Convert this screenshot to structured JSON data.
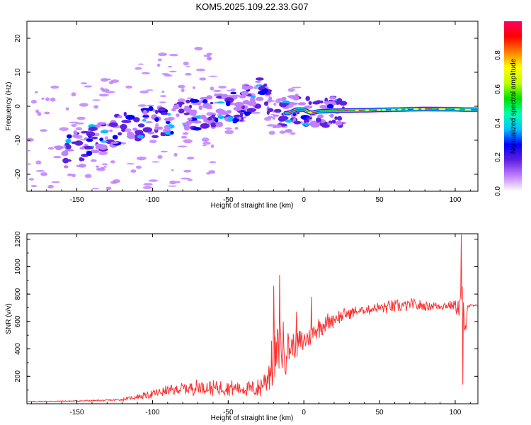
{
  "title": "KOM5.2025.109.22.33.G07",
  "chart_data": [
    {
      "type": "heatmap",
      "name": "spectrogram",
      "xlabel": "Height of straight line (km)",
      "ylabel": "Frequency (Hz)",
      "xlim": [
        -183,
        115
      ],
      "ylim": [
        -25,
        25
      ],
      "xticks": [
        -150,
        -100,
        -50,
        0,
        50,
        100
      ],
      "yticks": [
        -20,
        -10,
        0,
        10,
        20
      ],
      "ridge": {
        "x": [
          -183,
          -160,
          -140,
          -120,
          -100,
          -80,
          -65,
          -50,
          -40,
          -30,
          -25,
          -20,
          -15,
          -10,
          -5,
          0,
          5,
          10,
          20,
          40,
          60,
          80,
          100,
          108,
          115
        ],
        "freq": [
          -12,
          -14,
          -10,
          -6,
          -5,
          -3,
          -2,
          -1,
          1,
          4,
          2,
          -3,
          -2,
          -2,
          -1,
          -1,
          -2,
          -1.5,
          -1.3,
          -1.2,
          -1,
          -0.8,
          -0.9,
          -1,
          -1
        ]
      },
      "colorbar": {
        "label": "Normalized spectral amplitude",
        "range": [
          0,
          1
        ],
        "ticks": [
          "0.0",
          "0.2",
          "0.4",
          "0.6",
          "0.8"
        ],
        "colors": [
          "#ffffff",
          "#c080ff",
          "#6020e0",
          "#0000ff",
          "#00c0ff",
          "#00ffb0",
          "#00e000",
          "#c0ff00",
          "#ffff00",
          "#ff8000",
          "#ff0000",
          "#ff0060"
        ]
      }
    },
    {
      "type": "line",
      "name": "snr",
      "xlabel": "Height of straight line (km)",
      "ylabel": "SNR (v/v)",
      "xlim": [
        -183,
        115
      ],
      "ylim": [
        0,
        1240
      ],
      "xticks": [
        -150,
        -100,
        -50,
        0,
        50,
        100
      ],
      "yticks": [
        200,
        400,
        600,
        800,
        1000,
        1200
      ],
      "color": "#ff3030",
      "envelope": {
        "x": [
          -183,
          -150,
          -130,
          -120,
          -110,
          -100,
          -90,
          -80,
          -70,
          -60,
          -50,
          -40,
          -30,
          -25,
          -20,
          -17,
          -15,
          -13,
          -10,
          0,
          10,
          20,
          30,
          40,
          50,
          60,
          70,
          80,
          90,
          100,
          103,
          105,
          106,
          108,
          115
        ],
        "mean": [
          15,
          20,
          25,
          30,
          50,
          70,
          95,
          110,
          120,
          115,
          120,
          110,
          110,
          180,
          300,
          380,
          420,
          380,
          400,
          460,
          560,
          620,
          660,
          685,
          700,
          710,
          720,
          715,
          715,
          720,
          700,
          800,
          400,
          715,
          715
        ],
        "amplitude": [
          5,
          8,
          10,
          15,
          30,
          50,
          60,
          75,
          90,
          85,
          100,
          80,
          110,
          180,
          320,
          300,
          420,
          300,
          200,
          150,
          120,
          90,
          70,
          60,
          70,
          80,
          70,
          60,
          50,
          60,
          200,
          500,
          300,
          20,
          10
        ]
      },
      "spikes": [
        {
          "x": -16,
          "y": 940
        },
        {
          "x": -20,
          "y": 860
        },
        {
          "x": -5,
          "y": 670
        },
        {
          "x": 5,
          "y": 780
        },
        {
          "x": 104,
          "y": 1235
        },
        {
          "x": 105,
          "y": 140
        }
      ]
    }
  ]
}
